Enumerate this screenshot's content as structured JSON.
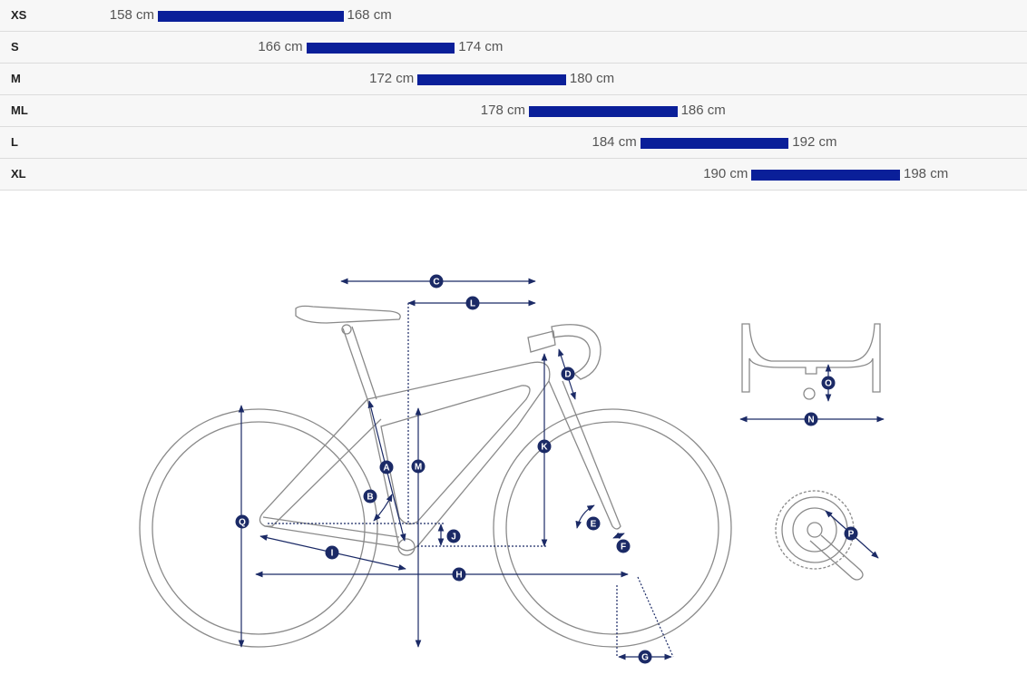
{
  "size_chart": [
    {
      "size": "XS",
      "min": "158 cm",
      "max": "168 cm",
      "min_cm": 158,
      "max_cm": 168
    },
    {
      "size": "S",
      "min": "166 cm",
      "max": "174 cm",
      "min_cm": 166,
      "max_cm": 174
    },
    {
      "size": "M",
      "min": "172 cm",
      "max": "180 cm",
      "min_cm": 172,
      "max_cm": 180
    },
    {
      "size": "ML",
      "min": "178 cm",
      "max": "186 cm",
      "min_cm": 178,
      "max_cm": 186
    },
    {
      "size": "L",
      "min": "184 cm",
      "max": "192 cm",
      "min_cm": 184,
      "max_cm": 192
    },
    {
      "size": "XL",
      "min": "190 cm",
      "max": "198 cm",
      "min_cm": 190,
      "max_cm": 198
    }
  ],
  "geometry_labels": [
    "A",
    "B",
    "C",
    "D",
    "E",
    "F",
    "G",
    "H",
    "I",
    "J",
    "K",
    "L",
    "M",
    "N",
    "O",
    "P",
    "Q"
  ],
  "colors": {
    "bar": "#0a1f99",
    "marker": "#1b2a66",
    "outline": "#8a8a8a",
    "row_bg": "#f7f7f7"
  }
}
